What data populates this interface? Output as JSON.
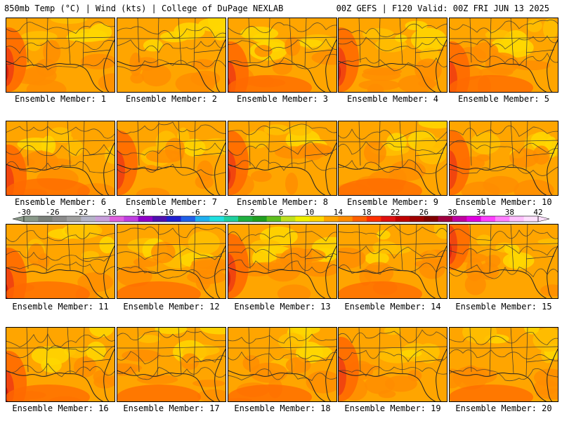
{
  "header": {
    "left": "850mb Temp (°C) | Wind (kts) | College of DuPage NEXLAB",
    "right": "00Z GEFS | F120 Valid: 00Z FRI JUN 13 2025"
  },
  "caption_prefix": "Ensemble Member: ",
  "members": [
    {
      "id": 1,
      "label": "Ensemble Member: 1",
      "hot_side": "west",
      "mean_temp_c": 19
    },
    {
      "id": 2,
      "label": "Ensemble Member: 2",
      "hot_side": "none",
      "mean_temp_c": 17
    },
    {
      "id": 3,
      "label": "Ensemble Member: 3",
      "hot_side": "southwest",
      "mean_temp_c": 19
    },
    {
      "id": 4,
      "label": "Ensemble Member: 4",
      "hot_side": "west",
      "mean_temp_c": 20
    },
    {
      "id": 5,
      "label": "Ensemble Member: 5",
      "hot_side": "southwest",
      "mean_temp_c": 18
    },
    {
      "id": 6,
      "label": "Ensemble Member: 6",
      "hot_side": "southwest",
      "mean_temp_c": 18
    },
    {
      "id": 7,
      "label": "Ensemble Member: 7",
      "hot_side": "west",
      "mean_temp_c": 18
    },
    {
      "id": 8,
      "label": "Ensemble Member: 8",
      "hot_side": "west",
      "mean_temp_c": 19
    },
    {
      "id": 9,
      "label": "Ensemble Member: 9",
      "hot_side": "south",
      "mean_temp_c": 18
    },
    {
      "id": 10,
      "label": "Ensemble Member: 10",
      "hot_side": "west",
      "mean_temp_c": 18
    },
    {
      "id": 11,
      "label": "Ensemble Member: 11",
      "hot_side": "southwest",
      "mean_temp_c": 19
    },
    {
      "id": 12,
      "label": "Ensemble Member: 12",
      "hot_side": "south",
      "mean_temp_c": 19
    },
    {
      "id": 13,
      "label": "Ensemble Member: 13",
      "hot_side": "west",
      "mean_temp_c": 20
    },
    {
      "id": 14,
      "label": "Ensemble Member: 14",
      "hot_side": "south",
      "mean_temp_c": 20
    },
    {
      "id": 15,
      "label": "Ensemble Member: 15",
      "hot_side": "northwest",
      "mean_temp_c": 19
    },
    {
      "id": 16,
      "label": "Ensemble Member: 16",
      "hot_side": "southwest",
      "mean_temp_c": 19
    },
    {
      "id": 17,
      "label": "Ensemble Member: 17",
      "hot_side": "south",
      "mean_temp_c": 19
    },
    {
      "id": 18,
      "label": "Ensemble Member: 18",
      "hot_side": "south",
      "mean_temp_c": 18
    },
    {
      "id": 19,
      "label": "Ensemble Member: 19",
      "hot_side": "west",
      "mean_temp_c": 18
    },
    {
      "id": 20,
      "label": "Ensemble Member: 20",
      "hot_side": "south",
      "mean_temp_c": 19
    }
  ],
  "colorbar": {
    "min": -30,
    "max": 42,
    "step": 2,
    "tick_labels": [
      "-30",
      "-26",
      "-22",
      "-18",
      "-14",
      "-10",
      "-6",
      "-2",
      "2",
      "6",
      "10",
      "14",
      "18",
      "22",
      "26",
      "30",
      "34",
      "38",
      "42"
    ],
    "colors": [
      "#8a9a8a",
      "#7a807a",
      "#8c8c8c",
      "#a0a0a0",
      "#b4b4c8",
      "#c8a0dc",
      "#e060e0",
      "#c040e0",
      "#9000c8",
      "#5010b0",
      "#2020d0",
      "#2060e8",
      "#20b0f0",
      "#20e0e0",
      "#20d0a0",
      "#20b040",
      "#20a020",
      "#60c020",
      "#c0e020",
      "#f0f000",
      "#ffd700",
      "#ffa500",
      "#ff8c00",
      "#ff6000",
      "#ff3000",
      "#e01010",
      "#c00000",
      "#a00000",
      "#800000",
      "#a00040",
      "#c000a0",
      "#e000e0",
      "#ff40ff",
      "#ff80ff",
      "#ffc0ff",
      "#ffe0ff"
    ]
  },
  "map_colors": {
    "t14": "#ffd700",
    "t16": "#ffc000",
    "t18": "#ffa500",
    "t20": "#ff8c00",
    "t22": "#ff6a00",
    "t24": "#f04010",
    "t26": "#d02010"
  }
}
